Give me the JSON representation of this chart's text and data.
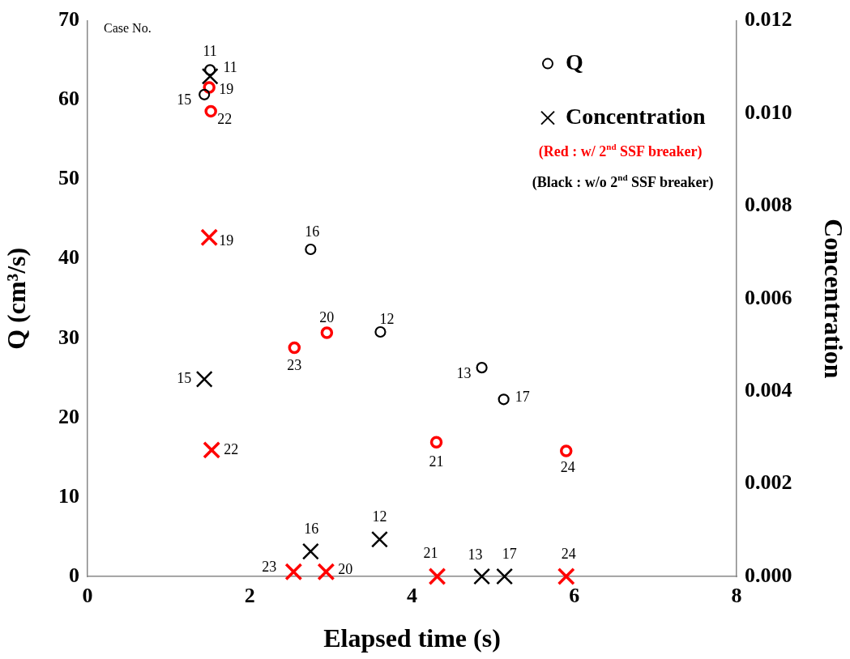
{
  "chart_data": {
    "type": "scatter",
    "xlabel": "Elapsed time (s)",
    "ylabel": "Q (cm³/s)",
    "y2label": "Concentration",
    "xlim": [
      0,
      8
    ],
    "xticks": [
      0,
      2,
      4,
      6,
      8
    ],
    "ylim": [
      0,
      70
    ],
    "yticks": [
      0,
      10,
      20,
      30,
      40,
      50,
      60,
      70
    ],
    "y2lim": [
      0,
      0.012
    ],
    "y2ticks": [
      {
        "value": 0,
        "label": "0.000"
      },
      {
        "value": 0.002,
        "label": "0.002"
      },
      {
        "value": 0.004,
        "label": "0.004"
      },
      {
        "value": 0.006,
        "label": "0.006"
      },
      {
        "value": 0.008,
        "label": "0.008"
      },
      {
        "value": 0.01,
        "label": "0.010"
      },
      {
        "value": 0.012,
        "label": "0.012"
      }
    ],
    "grid": false,
    "legend": "top right",
    "series": [
      {
        "name": "Q",
        "color": "#000000",
        "marker": "circle",
        "x": [
          1.51,
          1.44,
          2.75,
          3.61,
          4.86,
          5.13
        ],
        "values": [
          63.8,
          60.7,
          41.2,
          30.8,
          26.3,
          22.3
        ]
      },
      {
        "color": "#ff0000",
        "marker": "circle",
        "x": [
          1.5,
          1.52,
          2.55,
          2.95,
          4.3,
          5.9
        ],
        "values": [
          61.6,
          58.6,
          28.8,
          30.7,
          16.9,
          15.8
        ]
      },
      {
        "name": "Concentration",
        "color": "#000000",
        "marker": "cross",
        "axis": "y2",
        "x": [
          1.51,
          1.44,
          2.75,
          3.6,
          4.86,
          5.14
        ],
        "values": [
          0.0108,
          0.00426,
          0.00054,
          0.0008,
          0,
          0
        ]
      },
      {
        "color": "#ff0000",
        "marker": "cross",
        "axis": "y2",
        "x": [
          1.5,
          1.53,
          2.54,
          2.94,
          4.31,
          5.9
        ],
        "values": [
          0.00732,
          0.00273,
          0.0001,
          0.0001,
          0,
          0
        ]
      }
    ],
    "annotations": [
      "Case No.",
      "(Red : w/ 2$^{nd}$ SSF breaker)",
      "(Black : w/o 2$^{nd}$ SSF breaker)",
      {
        "text": "11",
        "x": 1.51,
        "y": 63.8
      },
      {
        "text": "15",
        "x": 1.44,
        "y": 60.7
      },
      {
        "text": "16",
        "x": 2.75,
        "y": 41.2
      },
      {
        "text": "12",
        "x": 3.61,
        "y": 30.8
      },
      {
        "text": "13",
        "x": 4.86,
        "y": 26.3
      },
      {
        "text": "17",
        "x": 5.13,
        "y": 22.3
      },
      {
        "text": "19",
        "x": 1.5,
        "y": 61.6
      },
      {
        "text": "22",
        "x": 1.52,
        "y": 58.6
      },
      {
        "text": "23",
        "x": 2.55,
        "y": 28.8
      },
      {
        "text": "20",
        "x": 2.95,
        "y": 30.7
      },
      {
        "text": "21",
        "x": 4.3,
        "y": 16.9
      },
      {
        "text": "24",
        "x": 5.9,
        "y": 15.8
      },
      "11",
      "15",
      "16",
      "12",
      "13",
      "17",
      "19",
      "22",
      "23",
      "20",
      "21",
      "24"
    ]
  }
}
